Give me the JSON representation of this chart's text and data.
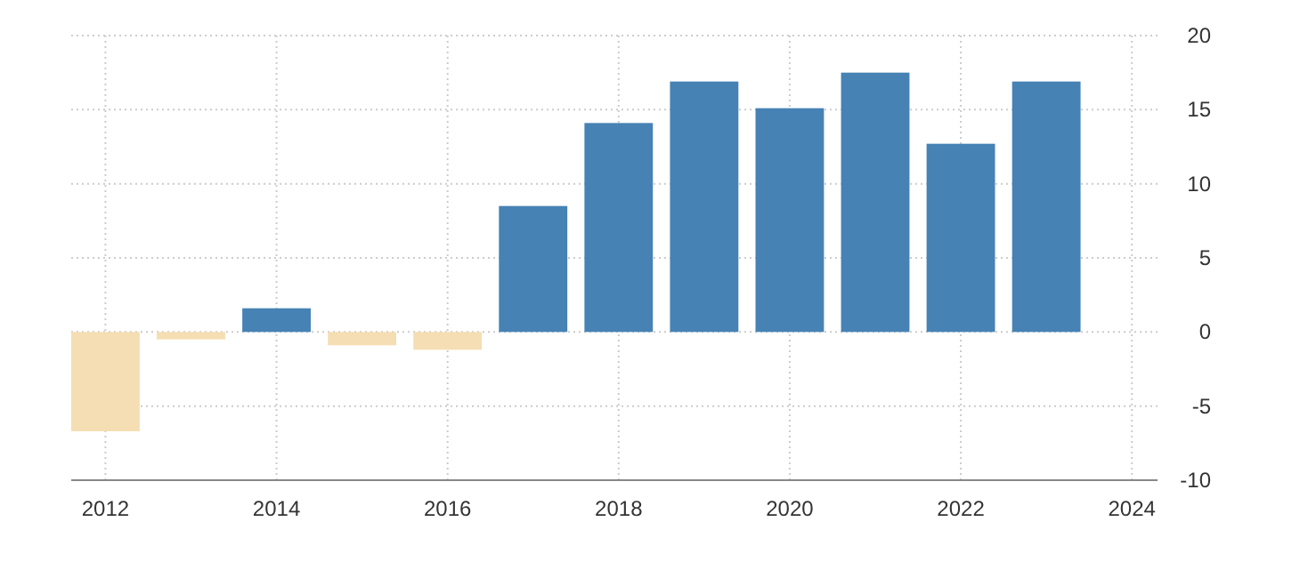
{
  "chart_data": {
    "type": "bar",
    "x": [
      2012,
      2013,
      2014,
      2015,
      2016,
      2017,
      2018,
      2019,
      2020,
      2021,
      2022,
      2023
    ],
    "values": [
      -6.7,
      -0.5,
      1.6,
      -0.9,
      -1.2,
      8.5,
      14.1,
      16.9,
      15.1,
      17.5,
      12.7,
      16.9
    ],
    "colors": [
      "#f5deb3",
      "#f5deb3",
      "#4682b4",
      "#f5deb3",
      "#f5deb3",
      "#4682b4",
      "#4682b4",
      "#4682b4",
      "#4682b4",
      "#4682b4",
      "#4682b4",
      "#4682b4"
    ],
    "xlim": [
      2011.6,
      2024.3
    ],
    "xticks": [
      2012,
      2014,
      2016,
      2018,
      2020,
      2022,
      2024
    ],
    "ylim": [
      -10,
      20
    ],
    "yticks": [
      -10,
      -5,
      0,
      5,
      10,
      15,
      20
    ],
    "grid": true
  }
}
